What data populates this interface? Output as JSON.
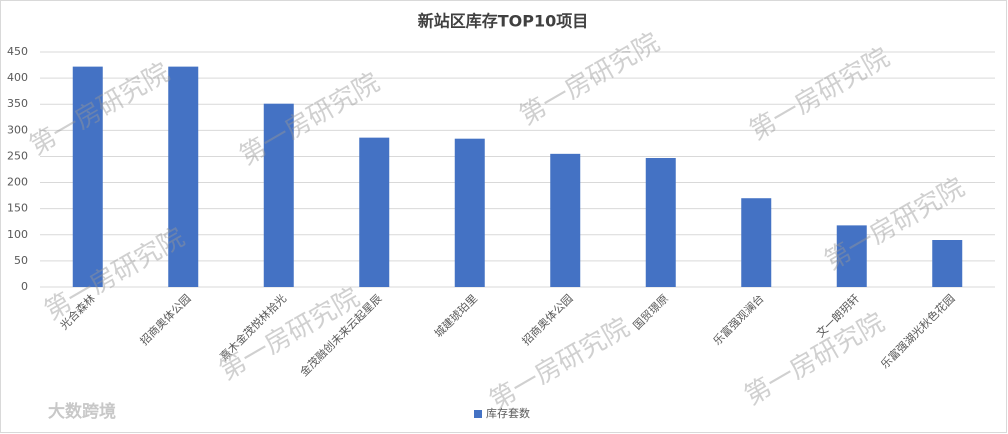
{
  "chart_data": {
    "type": "bar",
    "title": "新站区库存TOP10项目",
    "categories": [
      "光合森林",
      "招商奥体公园",
      "熹木金茂悦林拾光",
      "金茂融创未来云起星辰",
      "城建琥珀里",
      "招商奥体公园",
      "国贸璟原",
      "乐富强观澜台",
      "文一朗玥轩",
      "乐富强湖光秋色花园"
    ],
    "series": [
      {
        "name": "库存套数",
        "color": "#4472c4",
        "values": [
          422,
          422,
          351,
          286,
          284,
          255,
          247,
          170,
          118,
          90
        ]
      }
    ],
    "ylim": [
      0,
      450
    ],
    "yticks": [
      0,
      50,
      100,
      150,
      200,
      250,
      300,
      350,
      400,
      450
    ],
    "grid": true,
    "legend": "bottom"
  },
  "watermark": "第一房研究院",
  "logo": "大数跨境"
}
